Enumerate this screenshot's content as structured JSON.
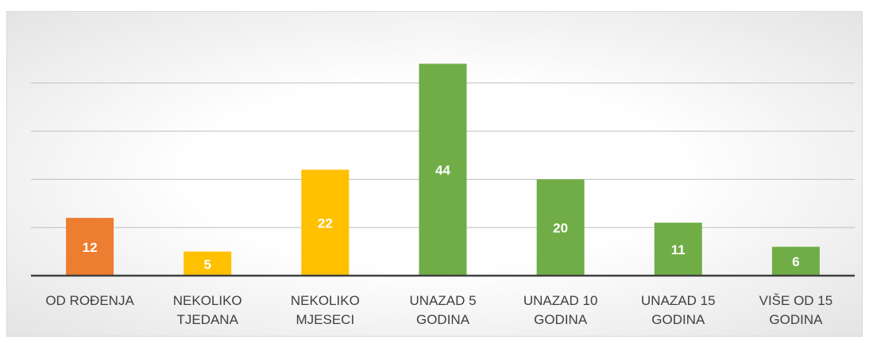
{
  "chart_data": {
    "type": "bar",
    "categories": [
      "OD ROĐENJA",
      "NEKOLIKO TJEDANA",
      "NEKOLIKO MJESECI",
      "UNAZAD 5 GODINA",
      "UNAZAD 10 GODINA",
      "UNAZAD 15 GODINA",
      "VIŠE OD 15 GODINA"
    ],
    "values": [
      12,
      5,
      22,
      44,
      20,
      11,
      6
    ],
    "colors": [
      "#ed7d31",
      "#ffc000",
      "#ffc000",
      "#70ad47",
      "#70ad47",
      "#70ad47",
      "#70ad47"
    ],
    "ylim": [
      0,
      50
    ],
    "yticks": [
      0,
      10,
      20,
      30,
      40
    ],
    "grid": true
  }
}
